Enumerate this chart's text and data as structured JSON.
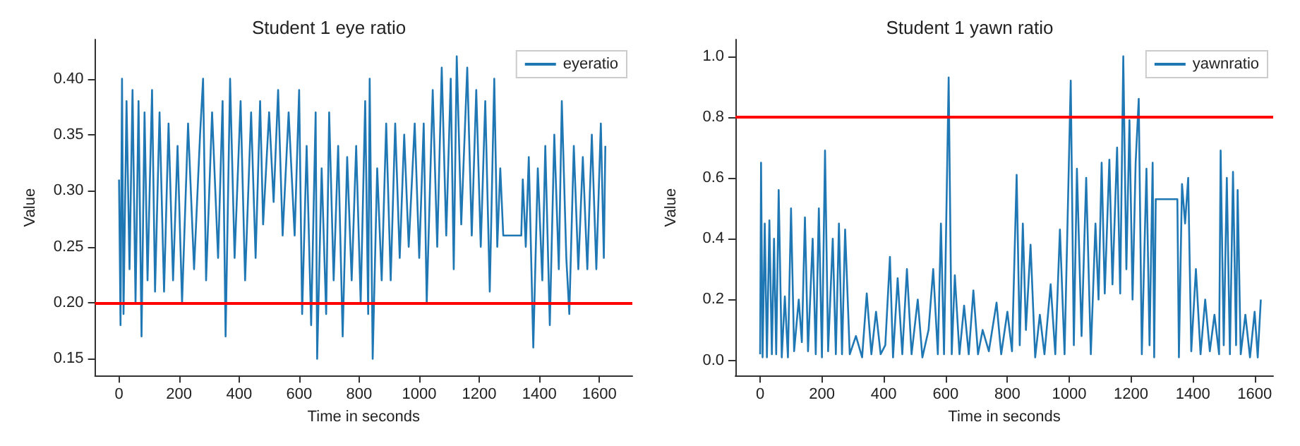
{
  "chart_data": [
    {
      "type": "line",
      "title": "Student 1 eye ratio",
      "xlabel": "Time in seconds",
      "ylabel": "Value",
      "legend": "top right",
      "grid": false,
      "xlim": [
        -80,
        1710
      ],
      "xticks": [
        0,
        200,
        400,
        600,
        800,
        1000,
        1200,
        1400,
        1600
      ],
      "ylim": [
        0.135,
        0.435
      ],
      "yticks": [
        0.15,
        {
          "value": 0.2,
          "label": "0.20"
        },
        0.25,
        {
          "value": 0.3,
          "label": "0.30"
        },
        0.35,
        {
          "value": 0.4,
          "label": "0.40"
        }
      ],
      "ref_lines": [
        {
          "axis": "y",
          "value": 0.2,
          "color": "#ff0000"
        }
      ],
      "series": [
        {
          "name": "eyeratio",
          "color": "#1f77b4",
          "x": [
            0,
            5,
            10,
            15,
            25,
            35,
            45,
            55,
            65,
            75,
            85,
            95,
            110,
            120,
            135,
            150,
            165,
            180,
            195,
            210,
            230,
            250,
            270,
            280,
            290,
            310,
            330,
            345,
            355,
            370,
            385,
            405,
            420,
            440,
            455,
            470,
            480,
            500,
            515,
            530,
            545,
            565,
            585,
            600,
            610,
            625,
            640,
            655,
            660,
            675,
            690,
            700,
            715,
            730,
            745,
            760,
            775,
            790,
            805,
            820,
            830,
            835,
            845,
            860,
            875,
            890,
            905,
            920,
            935,
            950,
            965,
            985,
            1000,
            1015,
            1025,
            1045,
            1060,
            1075,
            1090,
            1105,
            1115,
            1125,
            1140,
            1160,
            1175,
            1190,
            1205,
            1220,
            1235,
            1250,
            1260,
            1270,
            1280,
            1340,
            1345,
            1355,
            1365,
            1380,
            1395,
            1410,
            1420,
            1435,
            1450,
            1465,
            1475,
            1490,
            1500,
            1515,
            1530,
            1545,
            1560,
            1575,
            1590,
            1605,
            1615,
            1620
          ],
          "values": [
            0.31,
            0.18,
            0.4,
            0.19,
            0.38,
            0.23,
            0.39,
            0.2,
            0.38,
            0.17,
            0.37,
            0.22,
            0.39,
            0.21,
            0.37,
            0.21,
            0.36,
            0.22,
            0.34,
            0.2,
            0.36,
            0.23,
            0.35,
            0.4,
            0.22,
            0.37,
            0.24,
            0.38,
            0.17,
            0.4,
            0.24,
            0.38,
            0.22,
            0.37,
            0.24,
            0.38,
            0.27,
            0.37,
            0.29,
            0.39,
            0.26,
            0.37,
            0.26,
            0.39,
            0.19,
            0.34,
            0.18,
            0.37,
            0.15,
            0.32,
            0.19,
            0.37,
            0.22,
            0.34,
            0.17,
            0.33,
            0.22,
            0.34,
            0.2,
            0.38,
            0.19,
            0.4,
            0.15,
            0.32,
            0.22,
            0.36,
            0.22,
            0.36,
            0.24,
            0.35,
            0.25,
            0.36,
            0.24,
            0.36,
            0.2,
            0.39,
            0.25,
            0.41,
            0.26,
            0.4,
            0.23,
            0.42,
            0.27,
            0.41,
            0.26,
            0.39,
            0.25,
            0.38,
            0.21,
            0.4,
            0.25,
            0.32,
            0.26,
            0.26,
            0.31,
            0.25,
            0.33,
            0.16,
            0.32,
            0.22,
            0.34,
            0.18,
            0.35,
            0.23,
            0.38,
            0.24,
            0.19,
            0.34,
            0.23,
            0.33,
            0.23,
            0.35,
            0.23,
            0.36,
            0.24,
            0.34
          ]
        }
      ]
    },
    {
      "type": "line",
      "title": "Student 1 yawn ratio",
      "xlabel": "Time in seconds",
      "ylabel": "Value",
      "legend": "top right",
      "grid": false,
      "xlim": [
        -80,
        1660
      ],
      "xticks": [
        0,
        200,
        400,
        600,
        800,
        1000,
        1200,
        1400,
        1600
      ],
      "ylim": [
        -0.05,
        1.055
      ],
      "yticks": [
        {
          "value": 0,
          "label": "0.0"
        },
        0.2,
        0.4,
        0.6,
        0.8,
        {
          "value": 1,
          "label": "1.0"
        }
      ],
      "ref_lines": [
        {
          "axis": "y",
          "value": 0.8,
          "color": "#ff0000"
        }
      ],
      "series": [
        {
          "name": "yawnratio",
          "color": "#1f77b4",
          "x": [
            0,
            3,
            8,
            15,
            22,
            30,
            38,
            45,
            52,
            60,
            70,
            80,
            90,
            100,
            110,
            125,
            135,
            145,
            155,
            170,
            180,
            190,
            200,
            210,
            220,
            235,
            245,
            255,
            265,
            275,
            290,
            310,
            330,
            345,
            360,
            375,
            390,
            405,
            420,
            430,
            445,
            460,
            475,
            490,
            510,
            525,
            545,
            560,
            575,
            585,
            595,
            610,
            620,
            630,
            645,
            660,
            675,
            690,
            705,
            720,
            740,
            765,
            780,
            800,
            815,
            830,
            840,
            850,
            860,
            875,
            890,
            905,
            920,
            940,
            955,
            970,
            985,
            1005,
            1015,
            1025,
            1040,
            1055,
            1070,
            1085,
            1095,
            1105,
            1115,
            1130,
            1140,
            1155,
            1165,
            1175,
            1185,
            1195,
            1205,
            1215,
            1225,
            1235,
            1250,
            1260,
            1270,
            1275,
            1280,
            1350,
            1355,
            1365,
            1375,
            1385,
            1395,
            1410,
            1425,
            1440,
            1455,
            1470,
            1485,
            1490,
            1500,
            1510,
            1520,
            1530,
            1540,
            1545,
            1555,
            1570,
            1585,
            1600,
            1610,
            1620
          ],
          "values": [
            0.02,
            0.65,
            0.01,
            0.45,
            0.01,
            0.46,
            0.02,
            0.4,
            0.02,
            0.56,
            0.01,
            0.21,
            0.01,
            0.5,
            0.03,
            0.2,
            0.06,
            0.47,
            0.03,
            0.4,
            0.02,
            0.5,
            0.01,
            0.69,
            0.03,
            0.4,
            0.02,
            0.45,
            0.02,
            0.43,
            0.02,
            0.08,
            0.01,
            0.22,
            0.02,
            0.16,
            0.02,
            0.05,
            0.34,
            0.01,
            0.27,
            0.02,
            0.3,
            0.02,
            0.2,
            0.01,
            0.1,
            0.3,
            0.02,
            0.45,
            0.02,
            0.93,
            0.02,
            0.28,
            0.02,
            0.18,
            0.02,
            0.23,
            0.02,
            0.1,
            0.03,
            0.19,
            0.02,
            0.16,
            0.03,
            0.61,
            0.05,
            0.45,
            0.1,
            0.38,
            0.01,
            0.15,
            0.02,
            0.25,
            0.02,
            0.43,
            0.02,
            0.92,
            0.05,
            0.63,
            0.08,
            0.6,
            0.02,
            0.45,
            0.2,
            0.65,
            0.22,
            0.66,
            0.25,
            0.7,
            0.22,
            1.0,
            0.3,
            0.79,
            0.2,
            0.65,
            0.86,
            0.02,
            0.63,
            0.05,
            0.65,
            0.01,
            0.53,
            0.53,
            0.01,
            0.58,
            0.45,
            0.6,
            0.03,
            0.3,
            0.02,
            0.2,
            0.03,
            0.15,
            0.02,
            0.69,
            0.05,
            0.6,
            0.02,
            0.62,
            0.05,
            0.56,
            0.02,
            0.15,
            0.01,
            0.16,
            0.01,
            0.2
          ]
        }
      ]
    }
  ]
}
